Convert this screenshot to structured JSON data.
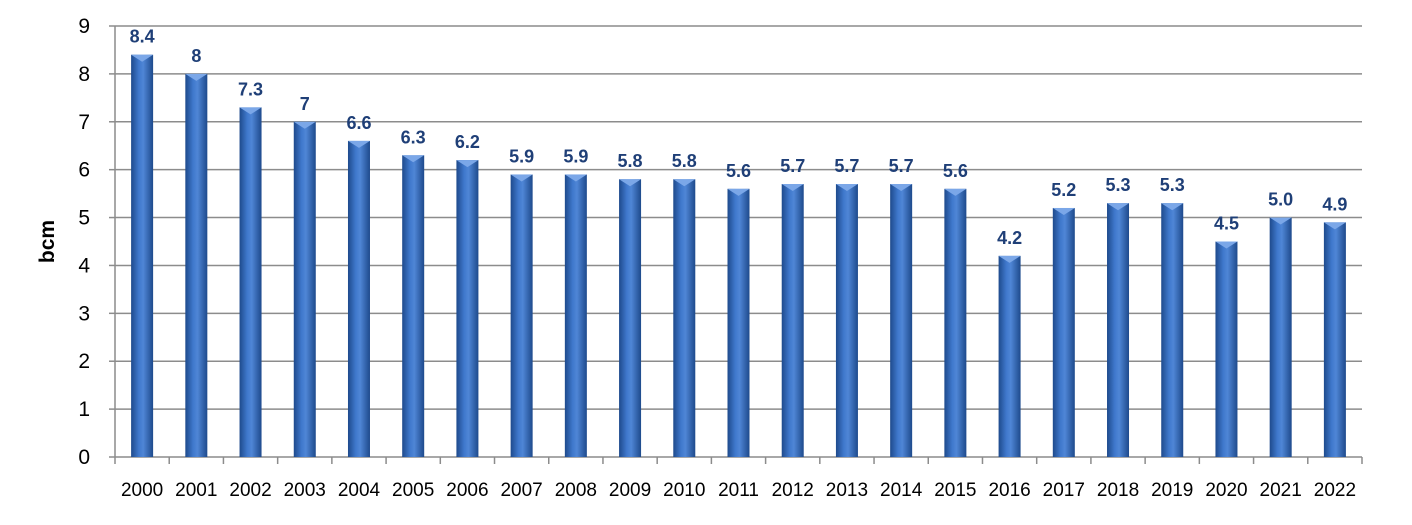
{
  "chart_data": {
    "type": "bar",
    "title": "",
    "xlabel": "",
    "ylabel": "bcm",
    "ylim": [
      0,
      9
    ],
    "yticks": [
      0,
      1,
      2,
      3,
      4,
      5,
      6,
      7,
      8,
      9
    ],
    "grid": true,
    "legend": "none",
    "categories": [
      "2000",
      "2001",
      "2002",
      "2003",
      "2004",
      "2005",
      "2006",
      "2007",
      "2008",
      "2009",
      "2010",
      "2011",
      "2012",
      "2013",
      "2014",
      "2015",
      "2016",
      "2017",
      "2018",
      "2019",
      "2020",
      "2021",
      "2022"
    ],
    "values": [
      8.4,
      8,
      7.3,
      7,
      6.6,
      6.3,
      6.2,
      5.9,
      5.9,
      5.8,
      5.8,
      5.6,
      5.7,
      5.7,
      5.7,
      5.6,
      4.2,
      5.2,
      5.3,
      5.3,
      4.5,
      5.0,
      4.9
    ],
    "value_labels": [
      "8.4",
      "8",
      "7.3",
      "7",
      "6.6",
      "6.3",
      "6.2",
      "5.9",
      "5.9",
      "5.8",
      "5.8",
      "5.6",
      "5.7",
      "5.7",
      "5.7",
      "5.6",
      "4.2",
      "5.2",
      "5.3",
      "5.3",
      "4.5",
      "5.0",
      "4.9"
    ],
    "colors": {
      "bar": "#3A6EC0",
      "bar_dark": "#1E4A8C",
      "bar_light": "#7BA7E8",
      "data_label": "#1F3F77",
      "grid": "#8C8C8C"
    }
  }
}
